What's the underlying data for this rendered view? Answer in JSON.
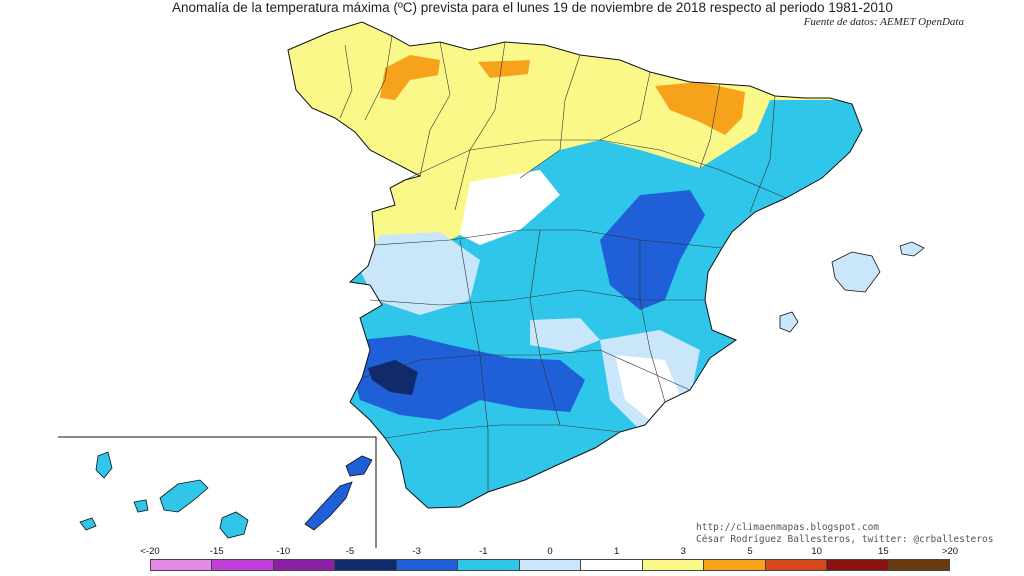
{
  "title": "Anomalía de la temperatura máxima (ºC) prevista para el lunes 19 de noviembre de 2018 respecto al periodo 1981-2010",
  "source": "Fuente de datos: AEMET OpenData",
  "credits": {
    "blog": "http://climaenmapas.blogspot.com",
    "author": "César Rodríguez Ballesteros, twitter: @crballesteros"
  },
  "legend": {
    "labels": [
      "<-20",
      "-15",
      "-10",
      "-5",
      "-3",
      "-1",
      "0",
      "1",
      "3",
      "5",
      "10",
      "15",
      ">20"
    ],
    "colors": [
      "#e58ae8",
      "#bf3fd8",
      "#8c1fa8",
      "#112a6b",
      "#1f5fd8",
      "#2fc6ea",
      "#c9e6fb",
      "#ffffff",
      "#fbf88a",
      "#f6a21a",
      "#d4481b",
      "#8c1010",
      "#6b3a10"
    ]
  },
  "regions": [
    {
      "name": "north-warm",
      "anomaly": "1 to 3"
    },
    {
      "name": "cantabrian-ridge",
      "anomaly": "3 to 5"
    },
    {
      "name": "navarra",
      "anomaly": "3 to 5"
    },
    {
      "name": "center",
      "anomaly": "-1 to -3"
    },
    {
      "name": "guadalquivir",
      "anomaly": "-3 to -5"
    },
    {
      "name": "southwest-border",
      "anomaly": "-5 to -10"
    }
  ]
}
